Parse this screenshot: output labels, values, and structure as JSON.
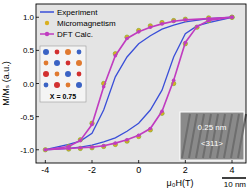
{
  "chart_data": {
    "type": "line",
    "x_label": "μ₀H(T)",
    "y_label": "M/Mₛ (a.u.)",
    "x": [
      4,
      3,
      2,
      1.5,
      1,
      0.5,
      0,
      -0.5,
      -1,
      -1.5,
      -2,
      -2.5,
      -3,
      -4,
      -3,
      -2.5,
      -2,
      -1.5,
      -1,
      -0.5,
      0,
      0.5,
      1,
      1.5,
      2,
      2.5,
      3,
      4
    ],
    "series": [
      {
        "name": "Experiment",
        "color": "#3a4fd8",
        "line_style": "solid",
        "marker": "none",
        "values": [
          1.0,
          0.98,
          0.93,
          0.88,
          0.82,
          0.72,
          0.6,
          0.4,
          0.1,
          -0.4,
          -0.75,
          -0.87,
          -0.92,
          -1.0,
          -0.98,
          -0.96,
          -0.93,
          -0.88,
          -0.82,
          -0.72,
          -0.6,
          -0.4,
          -0.1,
          0.4,
          0.75,
          0.87,
          0.92,
          1.0
        ]
      },
      {
        "name": "Micromagnetism",
        "color": "#d9b020",
        "line_style": "none",
        "marker": "circle",
        "values": [
          1.0,
          0.99,
          0.97,
          0.95,
          0.92,
          0.87,
          0.8,
          0.7,
          0.45,
          0.0,
          -0.6,
          -0.85,
          -0.95,
          -1.0,
          -0.99,
          -0.98,
          -0.97,
          -0.95,
          -0.92,
          -0.87,
          -0.8,
          -0.7,
          -0.45,
          0.0,
          0.6,
          0.85,
          0.95,
          1.0
        ]
      },
      {
        "name": "DFT Calc.",
        "color": "#c03cc0",
        "line_style": "solid",
        "marker": "circle",
        "values": [
          1.0,
          0.98,
          0.96,
          0.94,
          0.9,
          0.85,
          0.78,
          0.68,
          0.42,
          -0.05,
          -0.62,
          -0.86,
          -0.95,
          -1.0,
          -0.98,
          -0.97,
          -0.96,
          -0.94,
          -0.9,
          -0.85,
          -0.78,
          -0.68,
          -0.42,
          0.05,
          0.62,
          0.86,
          0.95,
          1.0
        ]
      }
    ],
    "xlim": [
      -4.4,
      4.6
    ],
    "xticks": [
      -4,
      -2,
      0,
      2,
      4
    ],
    "ylim": [
      -1.2,
      1.2
    ],
    "yticks": [
      {
        "value": -1,
        "label": "-1.0"
      },
      -0.5,
      {
        "value": 0,
        "label": "0.0"
      },
      0.5,
      {
        "value": 1,
        "label": "1.0"
      }
    ],
    "legend": "upper left",
    "annotations": [
      "X = 0.75",
      "0.25 nm",
      "<311>",
      "10 nm"
    ]
  }
}
